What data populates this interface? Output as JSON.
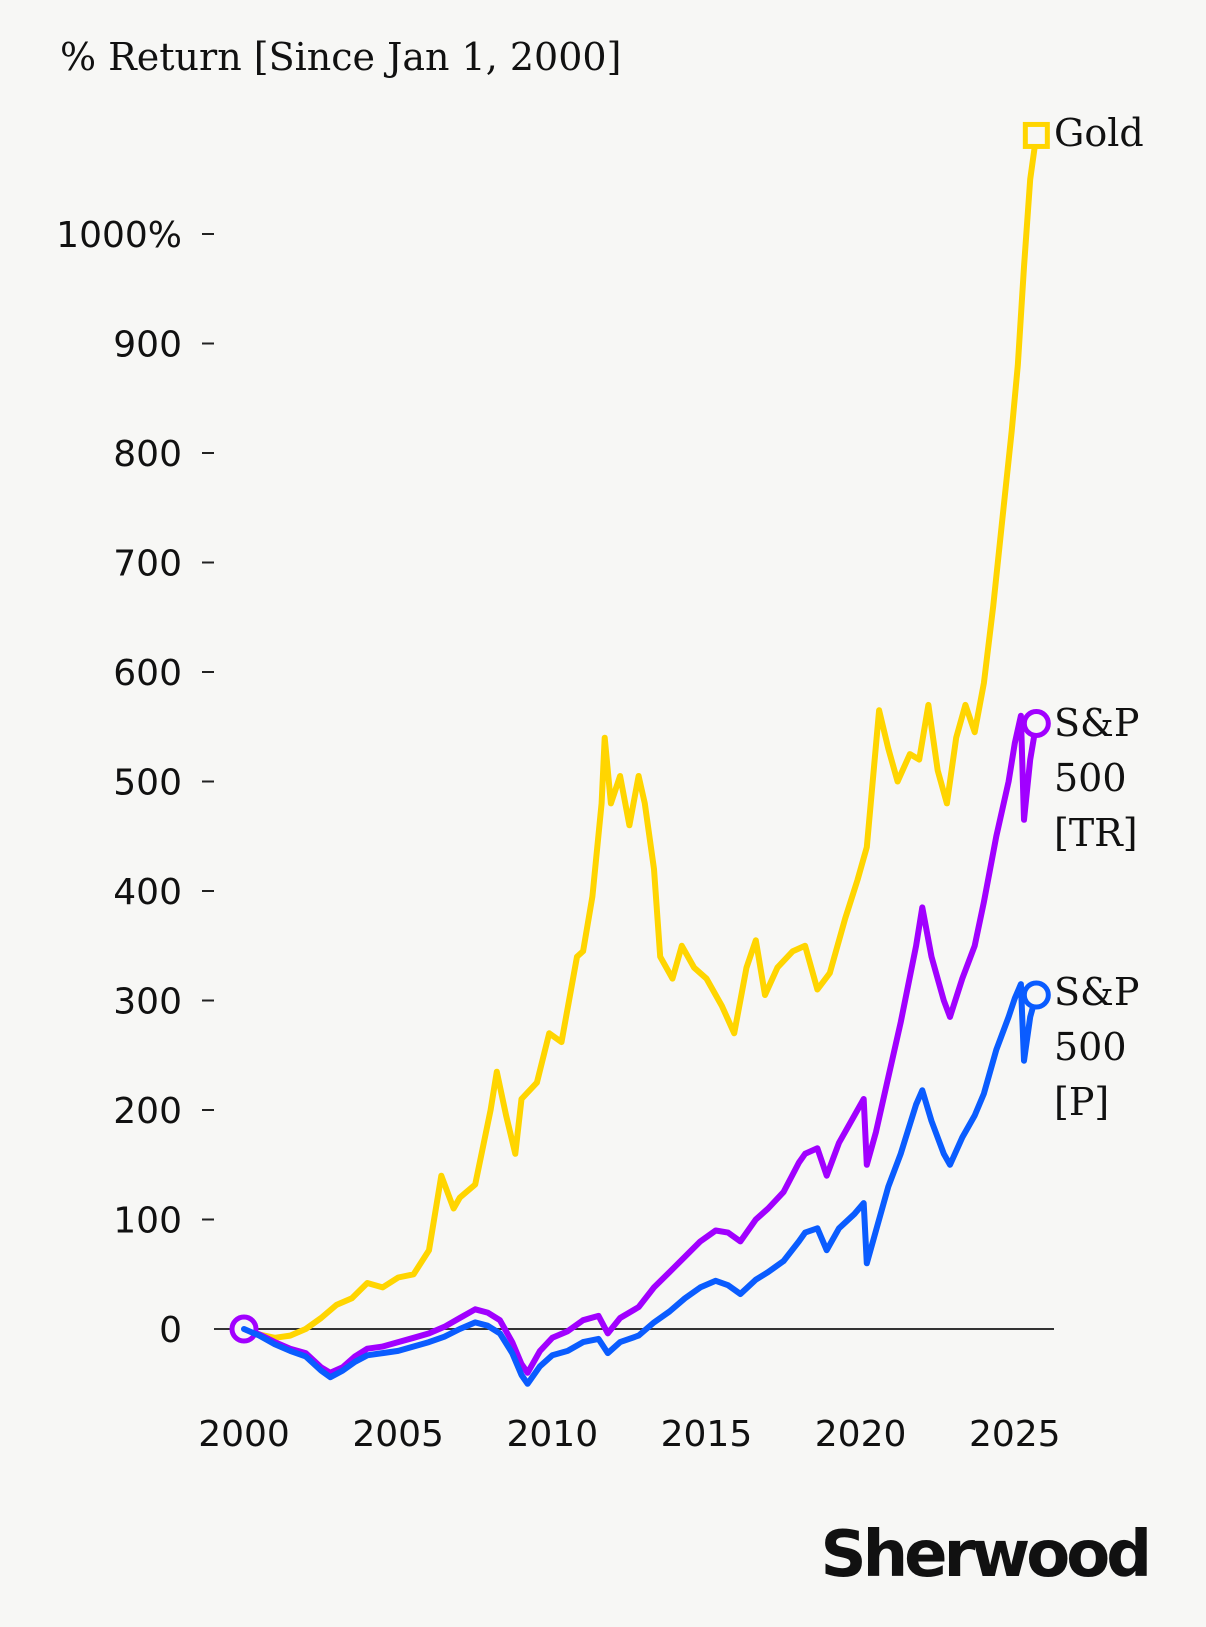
{
  "chart_data": {
    "type": "line",
    "title": "% Return [Since Jan 1, 2000]",
    "xlabel": "",
    "ylabel": "",
    "xlim": [
      2000,
      2025.9
    ],
    "ylim": [
      -60,
      1100
    ],
    "grid": false,
    "x_ticks": [
      2000,
      2005,
      2010,
      2015,
      2020,
      2025
    ],
    "x_tick_labels": [
      "2000",
      "2005",
      "2010",
      "2015",
      "2020",
      "2025"
    ],
    "y_ticks": [
      0,
      100,
      200,
      300,
      400,
      500,
      600,
      700,
      800,
      900,
      1000
    ],
    "y_tick_labels": [
      "0",
      "100",
      "200",
      "300",
      "400",
      "500",
      "600",
      "700",
      "800",
      "900",
      "1000%"
    ],
    "zero_line": true,
    "series": [
      {
        "name": "Gold",
        "label_lines": [
          "Gold"
        ],
        "color": "#FFD500",
        "end_marker": "square",
        "points": [
          [
            2000.0,
            0
          ],
          [
            2000.5,
            -5
          ],
          [
            2001.0,
            -8
          ],
          [
            2001.5,
            -6
          ],
          [
            2002.0,
            0
          ],
          [
            2002.5,
            10
          ],
          [
            2003.0,
            22
          ],
          [
            2003.5,
            28
          ],
          [
            2004.0,
            42
          ],
          [
            2004.5,
            38
          ],
          [
            2005.0,
            47
          ],
          [
            2005.5,
            50
          ],
          [
            2006.0,
            72
          ],
          [
            2006.4,
            140
          ],
          [
            2006.8,
            110
          ],
          [
            2007.0,
            120
          ],
          [
            2007.5,
            132
          ],
          [
            2008.0,
            200
          ],
          [
            2008.2,
            235
          ],
          [
            2008.5,
            195
          ],
          [
            2008.8,
            160
          ],
          [
            2009.0,
            210
          ],
          [
            2009.5,
            225
          ],
          [
            2009.9,
            270
          ],
          [
            2010.3,
            262
          ],
          [
            2010.8,
            340
          ],
          [
            2011.0,
            345
          ],
          [
            2011.3,
            395
          ],
          [
            2011.6,
            480
          ],
          [
            2011.7,
            540
          ],
          [
            2011.9,
            480
          ],
          [
            2012.2,
            505
          ],
          [
            2012.5,
            460
          ],
          [
            2012.8,
            505
          ],
          [
            2013.0,
            480
          ],
          [
            2013.3,
            420
          ],
          [
            2013.5,
            340
          ],
          [
            2013.9,
            320
          ],
          [
            2014.2,
            350
          ],
          [
            2014.6,
            330
          ],
          [
            2015.0,
            320
          ],
          [
            2015.5,
            295
          ],
          [
            2015.9,
            270
          ],
          [
            2016.3,
            330
          ],
          [
            2016.6,
            355
          ],
          [
            2016.9,
            305
          ],
          [
            2017.3,
            330
          ],
          [
            2017.8,
            345
          ],
          [
            2018.2,
            350
          ],
          [
            2018.6,
            310
          ],
          [
            2019.0,
            325
          ],
          [
            2019.5,
            375
          ],
          [
            2019.9,
            410
          ],
          [
            2020.2,
            440
          ],
          [
            2020.6,
            565
          ],
          [
            2020.9,
            530
          ],
          [
            2021.2,
            500
          ],
          [
            2021.6,
            525
          ],
          [
            2021.9,
            520
          ],
          [
            2022.2,
            570
          ],
          [
            2022.5,
            510
          ],
          [
            2022.8,
            480
          ],
          [
            2023.1,
            540
          ],
          [
            2023.4,
            570
          ],
          [
            2023.7,
            545
          ],
          [
            2024.0,
            590
          ],
          [
            2024.3,
            660
          ],
          [
            2024.6,
            740
          ],
          [
            2024.9,
            820
          ],
          [
            2025.1,
            880
          ],
          [
            2025.3,
            970
          ],
          [
            2025.5,
            1050
          ],
          [
            2025.7,
            1090
          ]
        ]
      },
      {
        "name": "S&P 500 [TR]",
        "label_lines": [
          "S&P",
          "500",
          "[TR]"
        ],
        "color": "#A100FF",
        "end_marker": "circle",
        "points": [
          [
            2000.0,
            0
          ],
          [
            2000.5,
            -5
          ],
          [
            2001.0,
            -12
          ],
          [
            2001.5,
            -18
          ],
          [
            2002.0,
            -22
          ],
          [
            2002.5,
            -35
          ],
          [
            2002.8,
            -40
          ],
          [
            2003.2,
            -35
          ],
          [
            2003.6,
            -25
          ],
          [
            2004.0,
            -18
          ],
          [
            2004.5,
            -16
          ],
          [
            2005.0,
            -12
          ],
          [
            2005.5,
            -8
          ],
          [
            2006.0,
            -4
          ],
          [
            2006.5,
            2
          ],
          [
            2007.0,
            10
          ],
          [
            2007.5,
            18
          ],
          [
            2007.9,
            15
          ],
          [
            2008.3,
            8
          ],
          [
            2008.7,
            -12
          ],
          [
            2009.0,
            -32
          ],
          [
            2009.2,
            -40
          ],
          [
            2009.6,
            -20
          ],
          [
            2010.0,
            -8
          ],
          [
            2010.5,
            -2
          ],
          [
            2011.0,
            8
          ],
          [
            2011.5,
            12
          ],
          [
            2011.8,
            -4
          ],
          [
            2012.2,
            10
          ],
          [
            2012.8,
            20
          ],
          [
            2013.3,
            38
          ],
          [
            2013.8,
            52
          ],
          [
            2014.3,
            66
          ],
          [
            2014.8,
            80
          ],
          [
            2015.3,
            90
          ],
          [
            2015.7,
            88
          ],
          [
            2016.1,
            80
          ],
          [
            2016.6,
            100
          ],
          [
            2017.0,
            110
          ],
          [
            2017.5,
            125
          ],
          [
            2018.0,
            152
          ],
          [
            2018.2,
            160
          ],
          [
            2018.6,
            165
          ],
          [
            2018.9,
            140
          ],
          [
            2019.3,
            170
          ],
          [
            2019.8,
            195
          ],
          [
            2020.1,
            210
          ],
          [
            2020.2,
            150
          ],
          [
            2020.5,
            180
          ],
          [
            2020.9,
            230
          ],
          [
            2021.3,
            280
          ],
          [
            2021.8,
            350
          ],
          [
            2022.0,
            385
          ],
          [
            2022.3,
            340
          ],
          [
            2022.7,
            300
          ],
          [
            2022.9,
            285
          ],
          [
            2023.3,
            320
          ],
          [
            2023.7,
            350
          ],
          [
            2024.0,
            390
          ],
          [
            2024.4,
            450
          ],
          [
            2024.8,
            500
          ],
          [
            2025.0,
            535
          ],
          [
            2025.2,
            560
          ],
          [
            2025.3,
            465
          ],
          [
            2025.5,
            520
          ],
          [
            2025.7,
            553
          ]
        ]
      },
      {
        "name": "S&P 500 [P]",
        "label_lines": [
          "S&P",
          "500",
          "[P]"
        ],
        "color": "#0A5CFF",
        "end_marker": "circle",
        "points": [
          [
            2000.0,
            0
          ],
          [
            2000.5,
            -6
          ],
          [
            2001.0,
            -14
          ],
          [
            2001.5,
            -20
          ],
          [
            2002.0,
            -25
          ],
          [
            2002.5,
            -38
          ],
          [
            2002.8,
            -44
          ],
          [
            2003.2,
            -38
          ],
          [
            2003.6,
            -30
          ],
          [
            2004.0,
            -24
          ],
          [
            2004.5,
            -22
          ],
          [
            2005.0,
            -20
          ],
          [
            2005.5,
            -16
          ],
          [
            2006.0,
            -12
          ],
          [
            2006.5,
            -7
          ],
          [
            2007.0,
            0
          ],
          [
            2007.5,
            6
          ],
          [
            2007.9,
            3
          ],
          [
            2008.3,
            -4
          ],
          [
            2008.7,
            -22
          ],
          [
            2009.0,
            -42
          ],
          [
            2009.2,
            -50
          ],
          [
            2009.6,
            -34
          ],
          [
            2010.0,
            -24
          ],
          [
            2010.5,
            -20
          ],
          [
            2011.0,
            -12
          ],
          [
            2011.5,
            -9
          ],
          [
            2011.8,
            -22
          ],
          [
            2012.2,
            -12
          ],
          [
            2012.8,
            -6
          ],
          [
            2013.3,
            6
          ],
          [
            2013.8,
            16
          ],
          [
            2014.3,
            28
          ],
          [
            2014.8,
            38
          ],
          [
            2015.3,
            44
          ],
          [
            2015.7,
            40
          ],
          [
            2016.1,
            32
          ],
          [
            2016.6,
            45
          ],
          [
            2017.0,
            52
          ],
          [
            2017.5,
            62
          ],
          [
            2018.0,
            80
          ],
          [
            2018.2,
            88
          ],
          [
            2018.6,
            92
          ],
          [
            2018.9,
            72
          ],
          [
            2019.3,
            92
          ],
          [
            2019.8,
            105
          ],
          [
            2020.1,
            115
          ],
          [
            2020.2,
            60
          ],
          [
            2020.5,
            90
          ],
          [
            2020.9,
            130
          ],
          [
            2021.3,
            160
          ],
          [
            2021.8,
            205
          ],
          [
            2022.0,
            218
          ],
          [
            2022.3,
            190
          ],
          [
            2022.7,
            160
          ],
          [
            2022.9,
            150
          ],
          [
            2023.3,
            175
          ],
          [
            2023.7,
            195
          ],
          [
            2024.0,
            215
          ],
          [
            2024.4,
            255
          ],
          [
            2024.8,
            285
          ],
          [
            2025.0,
            302
          ],
          [
            2025.2,
            315
          ],
          [
            2025.3,
            245
          ],
          [
            2025.5,
            285
          ],
          [
            2025.7,
            305
          ]
        ]
      }
    ]
  },
  "brand": {
    "name": "Sherwood"
  }
}
